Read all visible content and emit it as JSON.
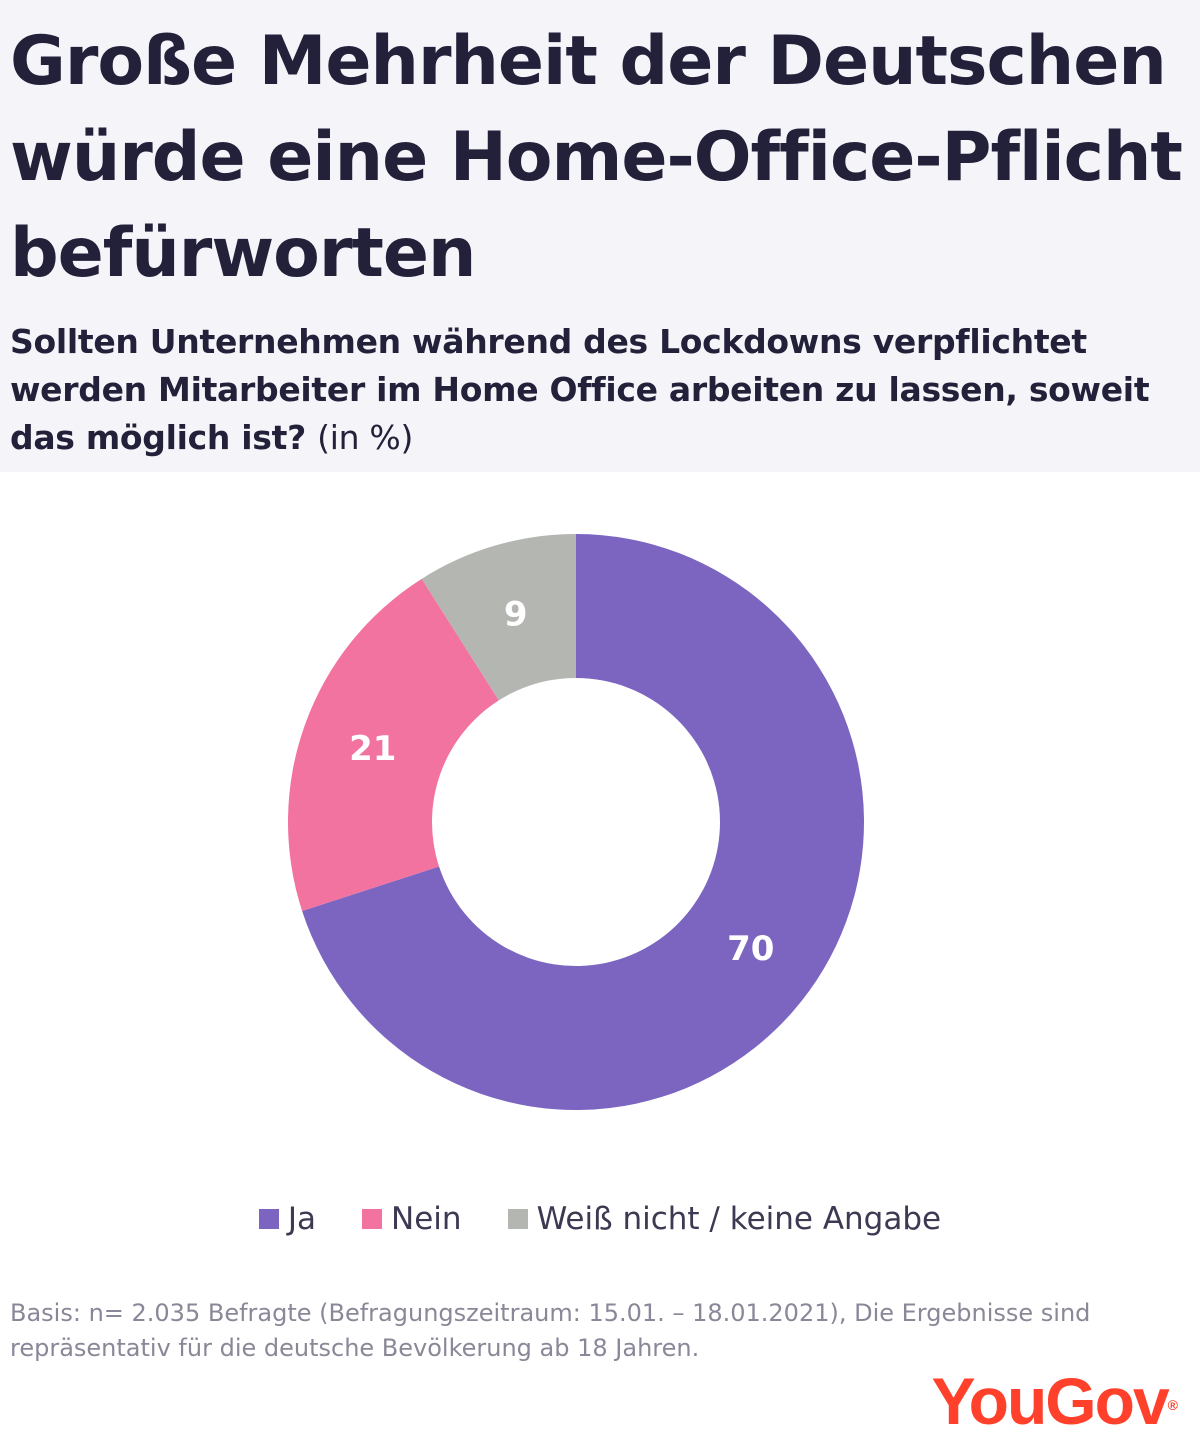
{
  "header": {
    "title": "Große Mehrheit der Deutschen würde eine Home-Office-Pflicht befürworten",
    "subtitle": "Sollten Unternehmen während des Lockdowns verpflichtet werden Mitarbeiter im Home Office arbeiten zu lassen, soweit das möglich ist?",
    "unit": "(in %)"
  },
  "chart_data": {
    "type": "pie",
    "style": "donut",
    "categories": [
      "Ja",
      "Nein",
      "Weiß nicht / keine Angabe"
    ],
    "values": [
      70,
      21,
      9
    ],
    "data_labels": [
      "70",
      "21",
      "9"
    ],
    "colors": [
      "#7b65c1",
      "#f272a0",
      "#b4b6b2"
    ],
    "legend_position": "bottom"
  },
  "footer": {
    "note": "Basis: n= 2.035 Befragte (Befragungszeitraum: 15.01. – 18.01.2021), Die Ergebnisse sind repräsentativ für die deutsche Bevölkerung ab 18 Jahren.",
    "logo": "YouGov",
    "logo_mark": "®"
  }
}
